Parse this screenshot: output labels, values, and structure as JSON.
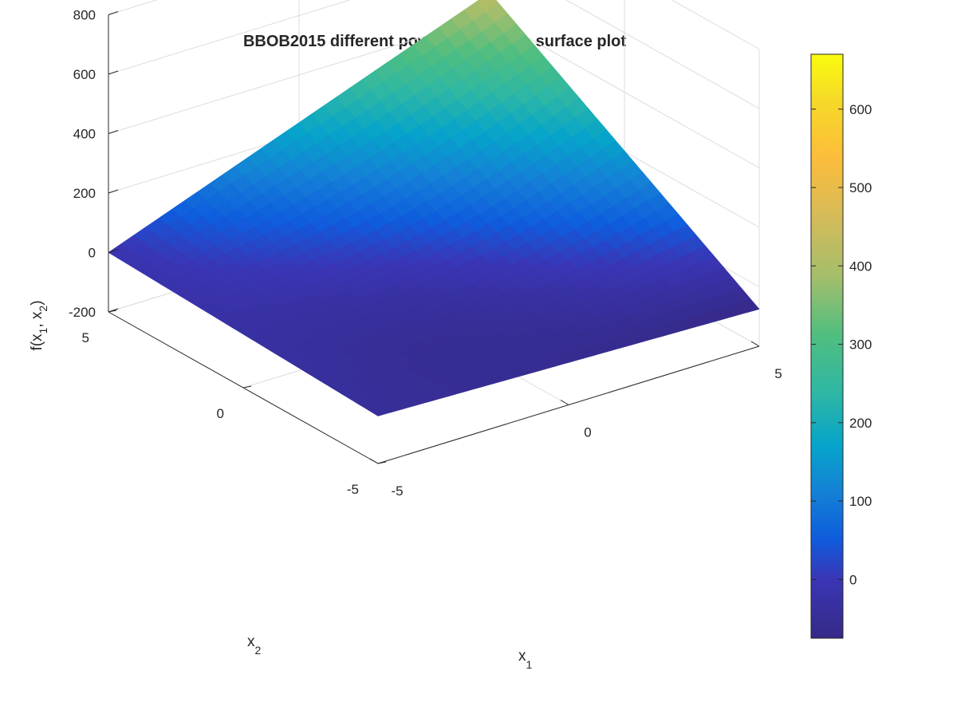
{
  "chart_data": {
    "type": "surface",
    "title": "BBOB2015 different powers function - surface plot",
    "xlabel": "x",
    "xlabel_sub": "1",
    "ylabel": "x",
    "ylabel_sub": "2",
    "zlabel_parts": [
      "f(x",
      "1",
      ", x",
      "2",
      ")"
    ],
    "xlim": [
      -5,
      5
    ],
    "ylim": [
      -5,
      5
    ],
    "zlim": [
      -200,
      800
    ],
    "x_ticks": [
      "-5",
      "0",
      "5"
    ],
    "y_ticks": [
      "-5",
      "0",
      "5"
    ],
    "z_ticks": [
      "-200",
      "0",
      "200",
      "400",
      "600",
      "800"
    ],
    "surface_corners": {
      "x1=-5,x2=5": 0,
      "x1=-5,x2=-5": -40,
      "x1=5,x2=5": 480,
      "x1=5,x2=-5": -75
    },
    "colorbar": {
      "range": [
        -75,
        670
      ],
      "ticks": [
        "0",
        "100",
        "200",
        "300",
        "400",
        "500",
        "600"
      ],
      "colormap": "parula"
    },
    "grid": true
  }
}
